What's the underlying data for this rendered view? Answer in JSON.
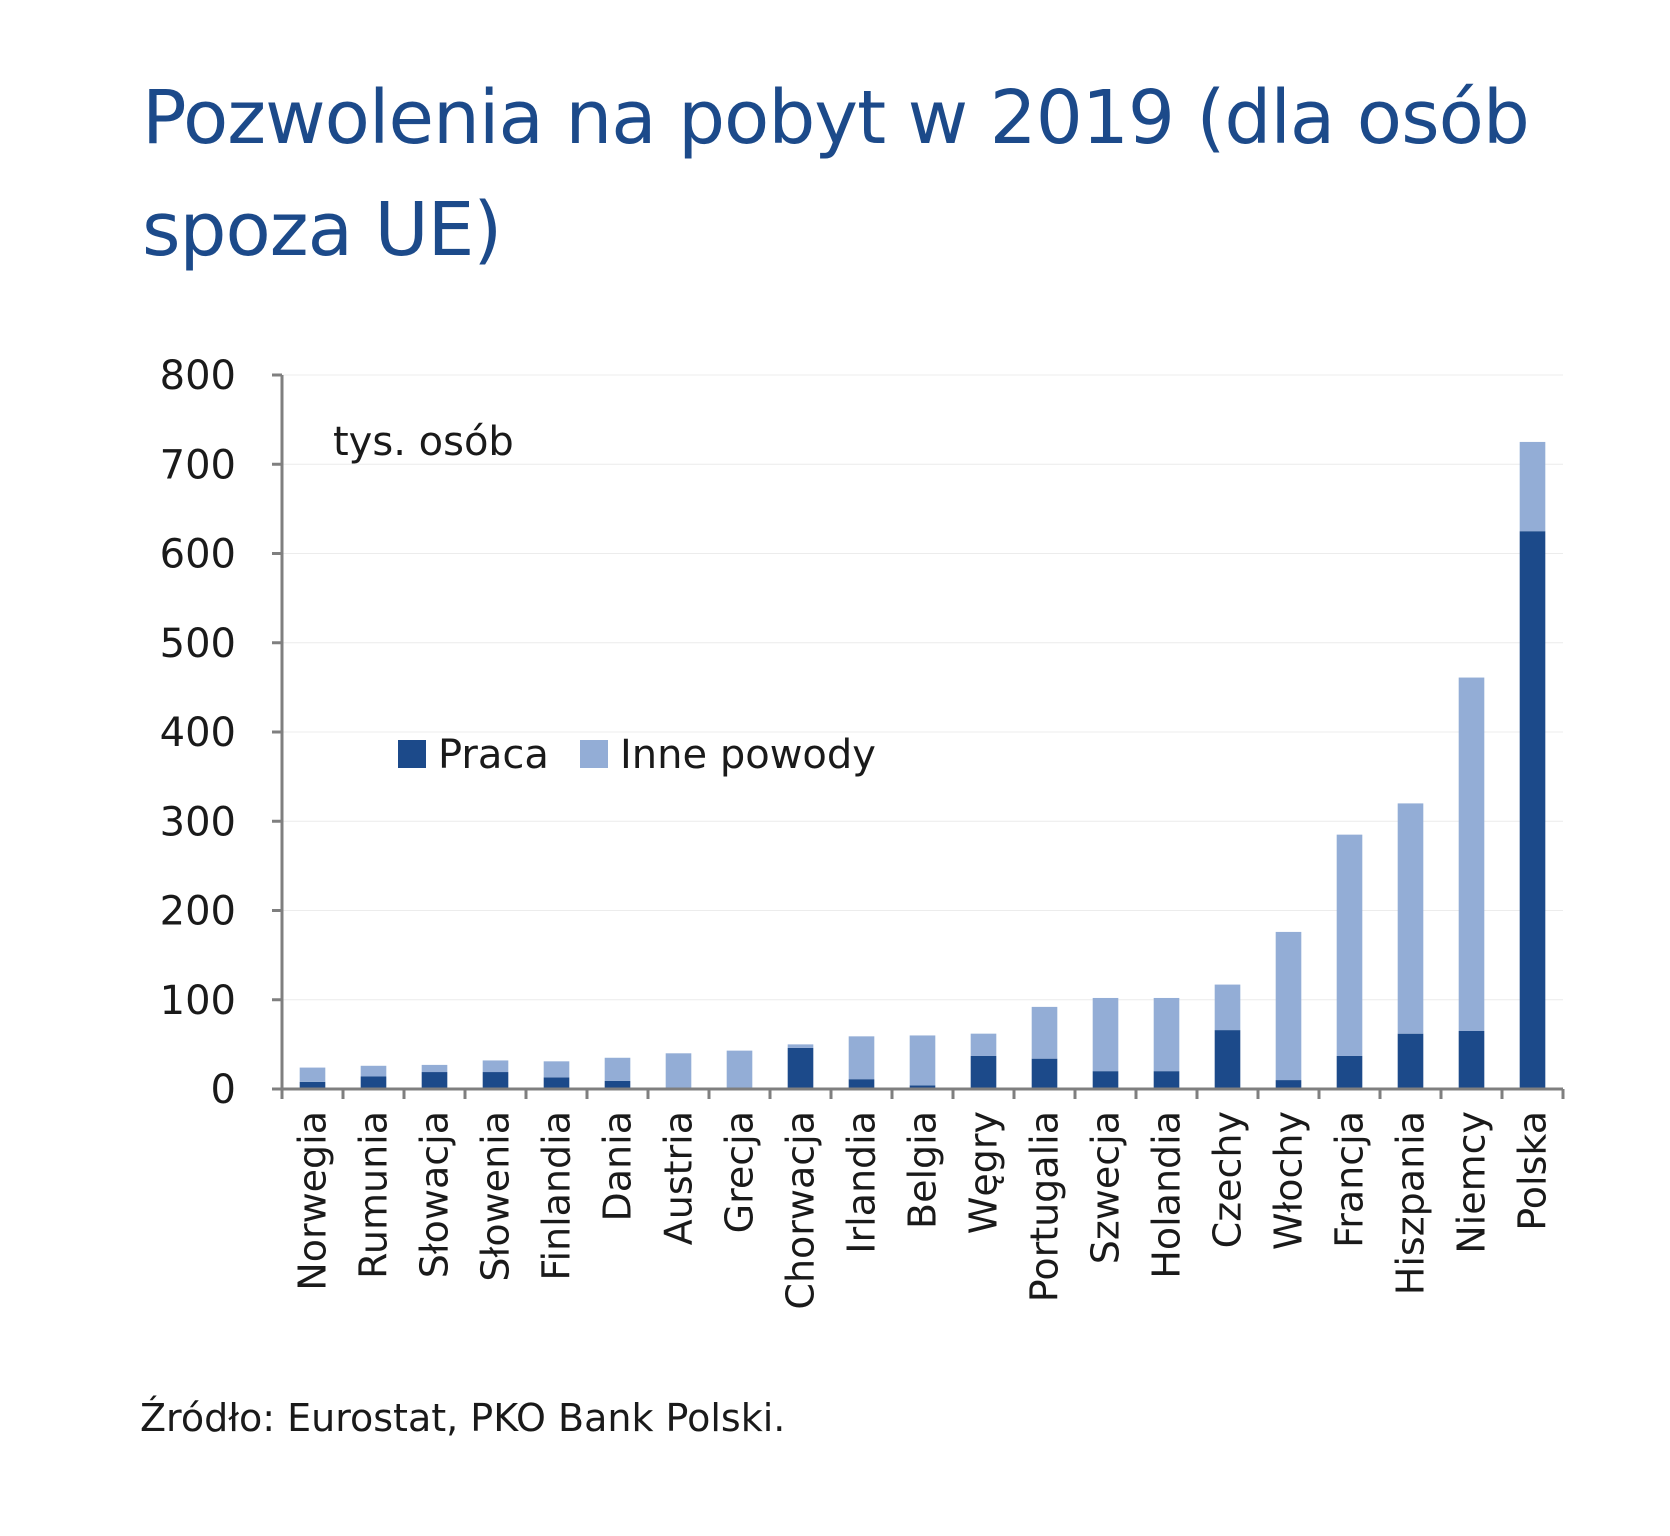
{
  "chart_data": {
    "type": "bar",
    "stacked": true,
    "title": "Pozwolenia na pobyt w 2019 (dla osób spoza UE)",
    "unit_label": "tys. osób",
    "source": "Źródło: Eurostat, PKO Bank Polski.",
    "ylim": [
      0,
      800
    ],
    "yticks": [
      0,
      100,
      200,
      300,
      400,
      500,
      600,
      700,
      800
    ],
    "grid": true,
    "legend_position": "center-left",
    "categories": [
      "Norwegia",
      "Rumunia",
      "Słowacja",
      "Słowenia",
      "Finlandia",
      "Dania",
      "Austria",
      "Grecja",
      "Chorwacja",
      "Irlandia",
      "Belgia",
      "Węgry",
      "Portugalia",
      "Szwecja",
      "Holandia",
      "Czechy",
      "Włochy",
      "Francja",
      "Hiszpania",
      "Niemcy",
      "Polska"
    ],
    "series": [
      {
        "name": "Praca",
        "color": "#1c4a8a",
        "values": [
          8,
          14,
          19,
          19,
          13,
          9,
          1,
          1,
          46,
          11,
          4,
          37,
          34,
          20,
          20,
          66,
          10,
          37,
          62,
          65,
          625
        ]
      },
      {
        "name": "Inne powody",
        "color": "#93add6",
        "values": [
          16,
          12,
          8,
          13,
          18,
          26,
          39,
          42,
          4,
          48,
          56,
          25,
          58,
          82,
          82,
          51,
          166,
          248,
          258,
          396,
          100
        ]
      }
    ]
  }
}
